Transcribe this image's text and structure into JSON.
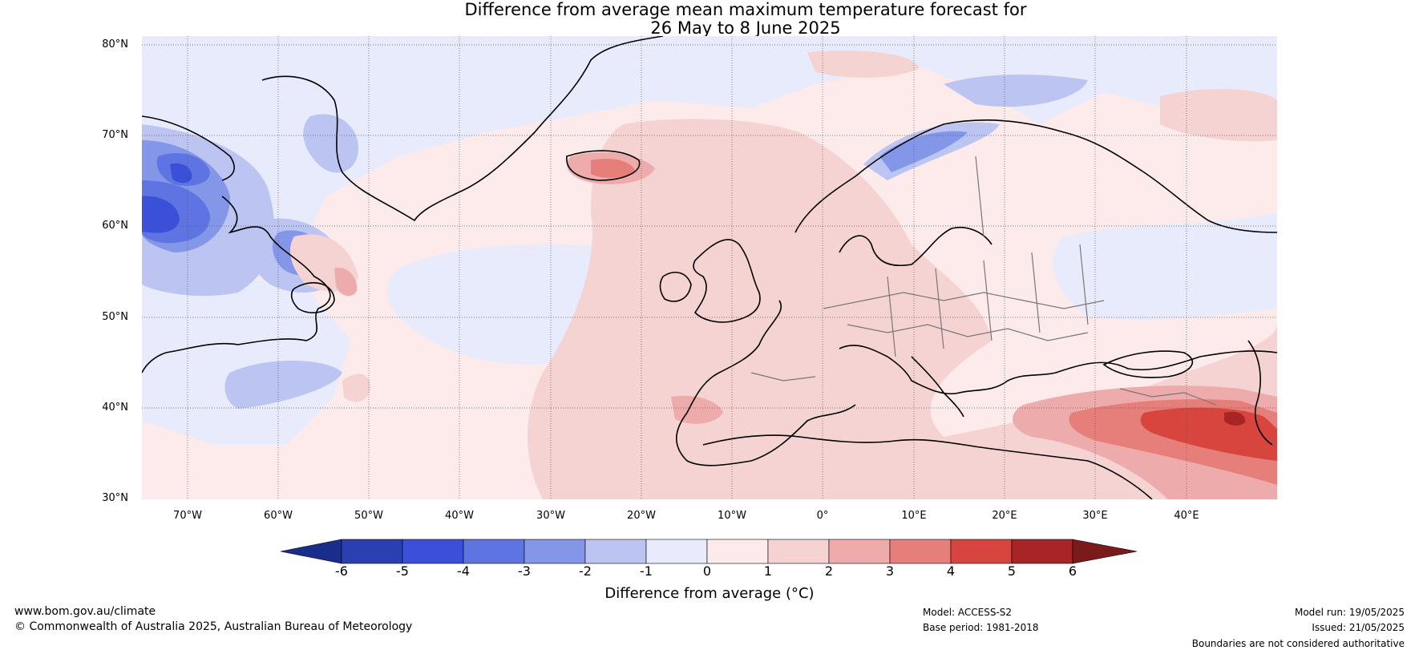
{
  "title": {
    "line1": "Difference from average mean maximum temperature forecast for",
    "line2": "26 May to 8 June 2025"
  },
  "axes": {
    "lat_labels": [
      "80°N",
      "70°N",
      "60°N",
      "50°N",
      "40°N",
      "30°N"
    ],
    "lon_labels": [
      "70°W",
      "60°W",
      "50°W",
      "40°W",
      "30°W",
      "20°W",
      "10°W",
      "0°",
      "10°E",
      "20°E",
      "30°E",
      "40°E"
    ]
  },
  "colorbar": {
    "ticks": [
      "-6",
      "-5",
      "-4",
      "-3",
      "-2",
      "-1",
      "0",
      "1",
      "2",
      "3",
      "4",
      "5",
      "6"
    ],
    "label": "Difference from average (°C)",
    "colors": [
      "#1b2d8a",
      "#2a3fb0",
      "#3a50d8",
      "#5e74e2",
      "#8496e8",
      "#bcc5f2",
      "#e8ebfb",
      "#fdeaea",
      "#f5d3d3",
      "#eeabab",
      "#e67f7a",
      "#d8453e",
      "#a92424",
      "#7a1a1a"
    ]
  },
  "footer": {
    "website": "www.bom.gov.au/climate",
    "copyright": "© Commonwealth of Australia 2025, Australian Bureau of Meteorology",
    "model": "Model: ACCESS-S2",
    "base_period": "Base period: 1981-2018",
    "model_run": "Model run: 19/05/2025",
    "issued": "Issued: 21/05/2025",
    "disclaimer": "Boundaries are not considered authoritative"
  }
}
